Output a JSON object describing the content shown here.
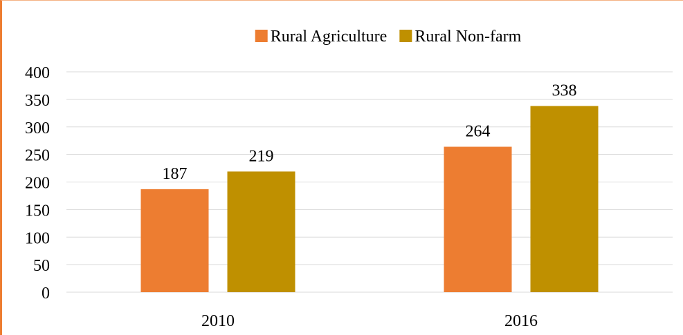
{
  "chart_data": {
    "type": "bar",
    "title": "",
    "xlabel": "",
    "ylabel": "",
    "categories": [
      "2010",
      "2016"
    ],
    "series": [
      {
        "name": "Rural Agriculture",
        "values": [
          187,
          264
        ],
        "color": "#ED7D31"
      },
      {
        "name": "Rural Non-farm",
        "values": [
          219,
          338
        ],
        "color": "#BF9000"
      }
    ],
    "ylim": [
      0,
      400
    ],
    "yticks": [
      0,
      50,
      100,
      150,
      200,
      250,
      300,
      350,
      400
    ],
    "grid": true,
    "legend_position": "top-center",
    "data_labels": true,
    "gridline_color": "#D9D9D9",
    "axis_color": "#D9D9D9"
  }
}
